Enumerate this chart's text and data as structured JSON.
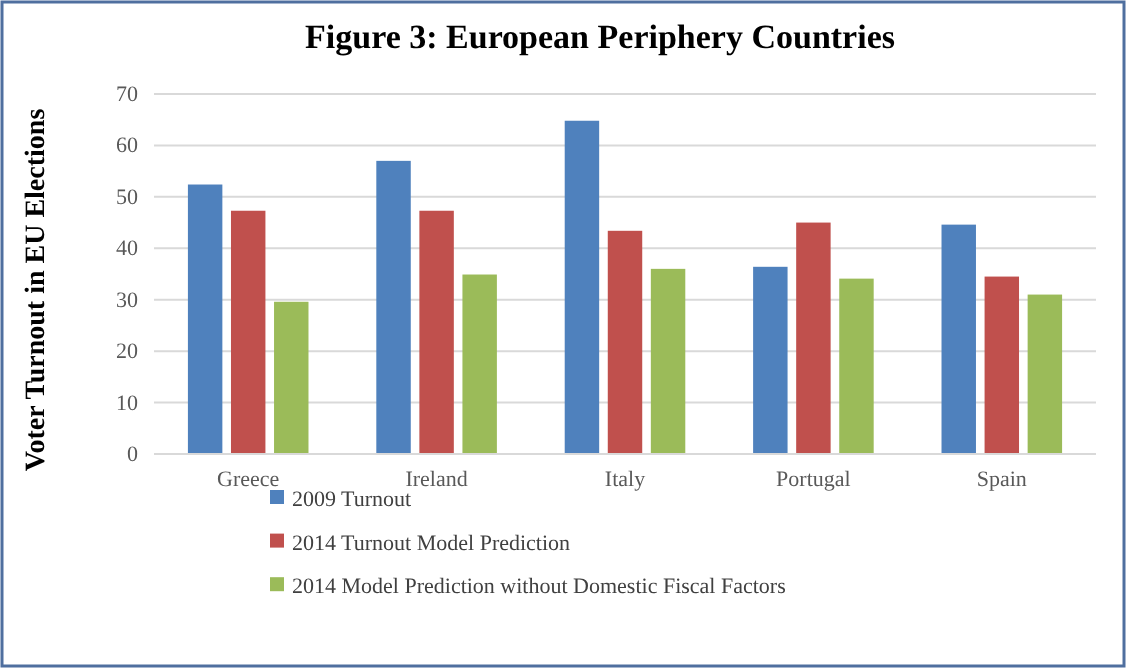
{
  "chart_data": {
    "type": "bar",
    "title": "Figure 3: European Periphery Countries",
    "ylabel": "Voter Turnout in EU Elections",
    "categories": [
      "Greece",
      "Ireland",
      "Italy",
      "Portugal",
      "Spain"
    ],
    "series": [
      {
        "name": "2009 Turnout",
        "color": "#4f81bd",
        "values": [
          52.4,
          57.0,
          64.8,
          36.4,
          44.6
        ]
      },
      {
        "name": "2014 Turnout Model Prediction",
        "color": "#c0504d",
        "values": [
          47.3,
          47.3,
          43.4,
          45.0,
          34.5
        ]
      },
      {
        "name": "2014 Model Prediction without Domestic Fiscal Factors",
        "color": "#9bbb59",
        "values": [
          29.6,
          34.9,
          36.0,
          34.1,
          31.0
        ]
      }
    ],
    "ylim": [
      0,
      70
    ],
    "yticks": [
      0,
      10,
      20,
      30,
      40,
      50,
      60,
      70
    ],
    "grid": "y",
    "legend": "bottom"
  }
}
